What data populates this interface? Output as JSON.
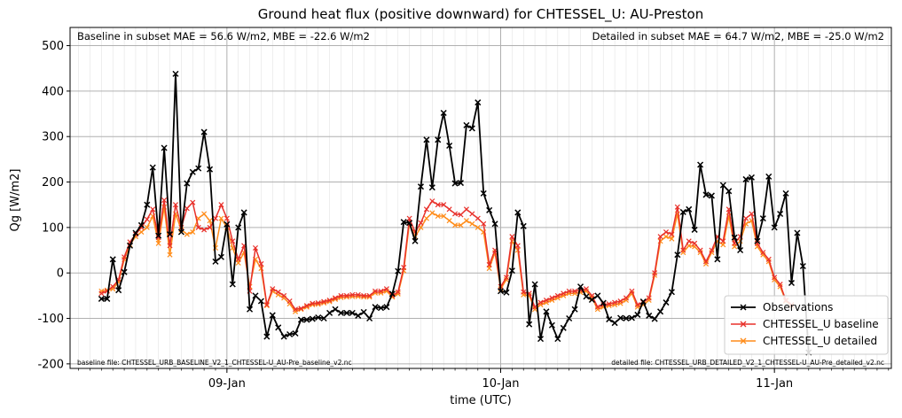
{
  "chart_data": {
    "type": "line",
    "title": "Ground heat flux (positive downward) for CHTESSEL_U: AU-Preston",
    "xlabel": "time (UTC)",
    "ylabel": "Qg [W/m2]",
    "x_tick_labels": [
      "09-Jan",
      "10-Jan",
      "11-Jan"
    ],
    "x_tick_dates": [
      "2010-01-09T00:00",
      "2010-01-10T00:00",
      "2010-01-11T00:00"
    ],
    "ylim": [
      -210,
      540
    ],
    "y_ticks": [
      -200,
      -100,
      0,
      100,
      200,
      300,
      400,
      500
    ],
    "grid": true,
    "legend_position": "lower right",
    "annotations": {
      "top_left": "Baseline in subset MAE = 56.6 W/m2, MBE = -22.6 W/m2",
      "top_right": "Detailed in subset MAE = 64.7 W/m2, MBE = -25.0 W/m2",
      "bottom_left": "baseline file: CHTESSEL_URB_BASELINE_V2_1_CHTESSEL-U_AU-Pre_baseline_v2.nc",
      "bottom_right": "detailed file: CHTESSEL_URB_DETAILED_V2_1_CHTESSEL-U_AU-Pre_detailed_v2.nc"
    },
    "x_start": "2010-01-08T13:00",
    "x_step_minutes": 30,
    "series": [
      {
        "name": "Observations",
        "color": "#000000",
        "values": [
          -57,
          -57,
          30,
          -38,
          2,
          60,
          88,
          105,
          150,
          232,
          82,
          275,
          85,
          438,
          90,
          197,
          222,
          230,
          310,
          228,
          25,
          35,
          107,
          -25,
          100,
          133,
          -80,
          -50,
          -62,
          -140,
          -93,
          -120,
          -140,
          -135,
          -133,
          -103,
          -103,
          -101,
          -98,
          -100,
          -88,
          -80,
          -88,
          -88,
          -88,
          -94,
          -86,
          -100,
          -75,
          -77,
          -75,
          -46,
          4,
          112,
          110,
          70,
          190,
          293,
          188,
          293,
          352,
          280,
          197,
          198,
          325,
          318,
          375,
          175,
          138,
          108,
          -40,
          -43,
          5,
          133,
          103,
          -113,
          -25,
          -145,
          -85,
          -115,
          -145,
          -121,
          -100,
          -80,
          -30,
          -52,
          -59,
          -50,
          -66,
          -102,
          -110,
          -99,
          -100,
          -99,
          -92,
          -63,
          -94,
          -101,
          -85,
          -65,
          -42,
          40,
          134,
          140,
          95,
          238,
          172,
          170,
          30,
          193,
          180,
          78,
          50,
          206,
          210,
          70,
          120,
          212,
          100,
          130,
          175,
          -22,
          88,
          15,
          -175
        ]
      },
      {
        "name": "CHTESSEL_U baseline",
        "color": "#e8302a",
        "values": [
          -45,
          -40,
          -30,
          -15,
          35,
          68,
          85,
          100,
          118,
          140,
          78,
          160,
          60,
          150,
          100,
          142,
          155,
          100,
          95,
          100,
          120,
          150,
          120,
          70,
          30,
          60,
          -40,
          55,
          20,
          -70,
          -35,
          -42,
          -50,
          -62,
          -80,
          -78,
          -72,
          -67,
          -66,
          -63,
          -60,
          -55,
          -50,
          -50,
          -48,
          -48,
          -50,
          -50,
          -40,
          -40,
          -35,
          -50,
          -42,
          12,
          120,
          90,
          110,
          140,
          158,
          150,
          150,
          140,
          130,
          128,
          140,
          130,
          120,
          108,
          18,
          50,
          -30,
          -10,
          80,
          60,
          -42,
          -45,
          -75,
          -65,
          -60,
          -55,
          -50,
          -45,
          -40,
          -40,
          -38,
          -35,
          -50,
          -75,
          -70,
          -68,
          -65,
          -62,
          -55,
          -40,
          -70,
          -65,
          -55,
          0,
          80,
          90,
          85,
          145,
          50,
          70,
          65,
          50,
          25,
          50,
          80,
          70,
          140,
          65,
          80,
          120,
          130,
          65,
          45,
          30,
          -10,
          -25,
          -60,
          -70
        ]
      },
      {
        "name": "CHTESSEL_U detailed",
        "color": "#ff8c1a",
        "values": [
          -40,
          -38,
          -35,
          -20,
          30,
          62,
          80,
          90,
          100,
          125,
          65,
          145,
          40,
          130,
          95,
          85,
          90,
          120,
          130,
          115,
          55,
          120,
          100,
          55,
          22,
          45,
          -30,
          30,
          10,
          -72,
          -40,
          -48,
          -55,
          -68,
          -85,
          -80,
          -75,
          -70,
          -69,
          -66,
          -63,
          -58,
          -54,
          -53,
          -52,
          -52,
          -53,
          -53,
          -44,
          -44,
          -40,
          -53,
          -46,
          5,
          110,
          80,
          100,
          120,
          132,
          125,
          125,
          115,
          105,
          105,
          115,
          108,
          100,
          90,
          10,
          45,
          -35,
          -15,
          70,
          50,
          -48,
          -50,
          -80,
          -70,
          -65,
          -60,
          -55,
          -50,
          -45,
          -45,
          -43,
          -40,
          -55,
          -80,
          -75,
          -72,
          -70,
          -67,
          -60,
          -45,
          -75,
          -70,
          -60,
          -5,
          70,
          80,
          75,
          130,
          45,
          60,
          58,
          45,
          20,
          45,
          70,
          62,
          125,
          58,
          70,
          108,
          115,
          58,
          40,
          25,
          -15,
          -30,
          -62,
          -72
        ]
      }
    ]
  }
}
